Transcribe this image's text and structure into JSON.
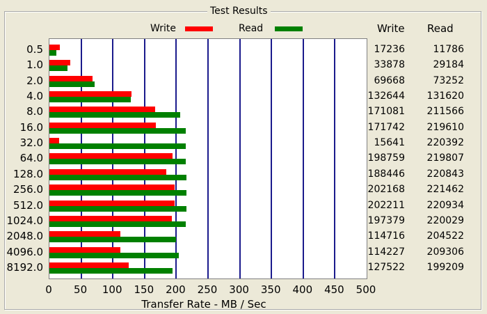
{
  "group_title": "Test Results",
  "legend": [
    {
      "label": "Write",
      "color": "#ff0000"
    },
    {
      "label": "Read",
      "color": "#008000"
    }
  ],
  "columns": {
    "write": "Write",
    "read": "Read"
  },
  "chart_data": {
    "type": "bar",
    "orientation": "horizontal",
    "title": "",
    "xlabel": "Transfer Rate - MB / Sec",
    "xlim": [
      0,
      500
    ],
    "xticks": [
      "0",
      "50",
      "100",
      "150",
      "200",
      "250",
      "300",
      "350",
      "400",
      "450",
      "500"
    ],
    "grid": true,
    "categories": [
      "0.5",
      "1.0",
      "2.0",
      "4.0",
      "8.0",
      "16.0",
      "32.0",
      "64.0",
      "128.0",
      "256.0",
      "512.0",
      "1024.0",
      "2048.0",
      "4096.0",
      "8192.0"
    ],
    "series": [
      {
        "name": "Write",
        "color": "#ff0000",
        "values": [
          17236,
          33878,
          69668,
          132644,
          171081,
          171742,
          15641,
          198759,
          188446,
          202168,
          202211,
          197379,
          114716,
          114227,
          127522
        ]
      },
      {
        "name": "Read",
        "color": "#008000",
        "values": [
          11786,
          29184,
          73252,
          131620,
          211566,
          219610,
          220392,
          219807,
          220843,
          221462,
          220934,
          220029,
          204522,
          209306,
          199209
        ]
      }
    ]
  }
}
